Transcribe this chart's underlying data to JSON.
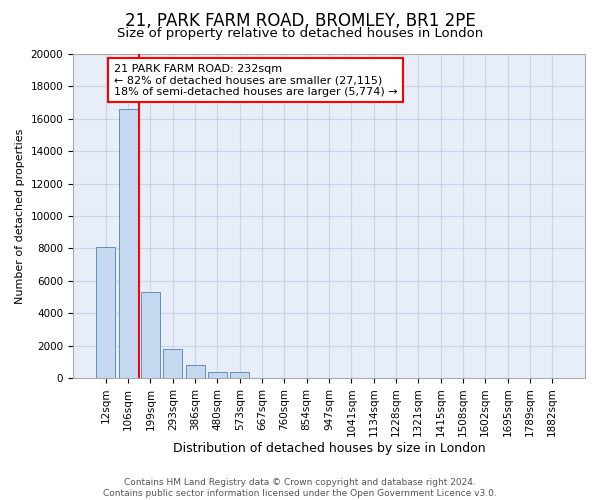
{
  "title": "21, PARK FARM ROAD, BROMLEY, BR1 2PE",
  "subtitle": "Size of property relative to detached houses in London",
  "xlabel": "Distribution of detached houses by size in London",
  "ylabel": "Number of detached properties",
  "categories": [
    "12sqm",
    "106sqm",
    "199sqm",
    "293sqm",
    "386sqm",
    "480sqm",
    "573sqm",
    "667sqm",
    "760sqm",
    "854sqm",
    "947sqm",
    "1041sqm",
    "1134sqm",
    "1228sqm",
    "1321sqm",
    "1415sqm",
    "1508sqm",
    "1602sqm",
    "1695sqm",
    "1789sqm",
    "1882sqm"
  ],
  "values": [
    8100,
    16600,
    5300,
    1800,
    800,
    350,
    350,
    0,
    0,
    0,
    0,
    0,
    0,
    0,
    0,
    0,
    0,
    0,
    0,
    0,
    0
  ],
  "bar_color": "#c5d8f0",
  "bar_edge_color": "#6090c0",
  "grid_color": "#c8d4e8",
  "background_color": "#e8eef8",
  "property_line_x": 1.5,
  "property_line_color": "red",
  "annotation_text": "21 PARK FARM ROAD: 232sqm\n← 82% of detached houses are smaller (27,115)\n18% of semi-detached houses are larger (5,774) →",
  "annotation_box_color": "white",
  "annotation_box_edge_color": "red",
  "ylim": [
    0,
    20000
  ],
  "yticks": [
    0,
    2000,
    4000,
    6000,
    8000,
    10000,
    12000,
    14000,
    16000,
    18000,
    20000
  ],
  "footer_line1": "Contains HM Land Registry data © Crown copyright and database right 2024.",
  "footer_line2": "Contains public sector information licensed under the Open Government Licence v3.0.",
  "title_fontsize": 12,
  "subtitle_fontsize": 9.5,
  "xlabel_fontsize": 9,
  "ylabel_fontsize": 8,
  "tick_fontsize": 7.5,
  "annotation_fontsize": 8,
  "footer_fontsize": 6.5
}
